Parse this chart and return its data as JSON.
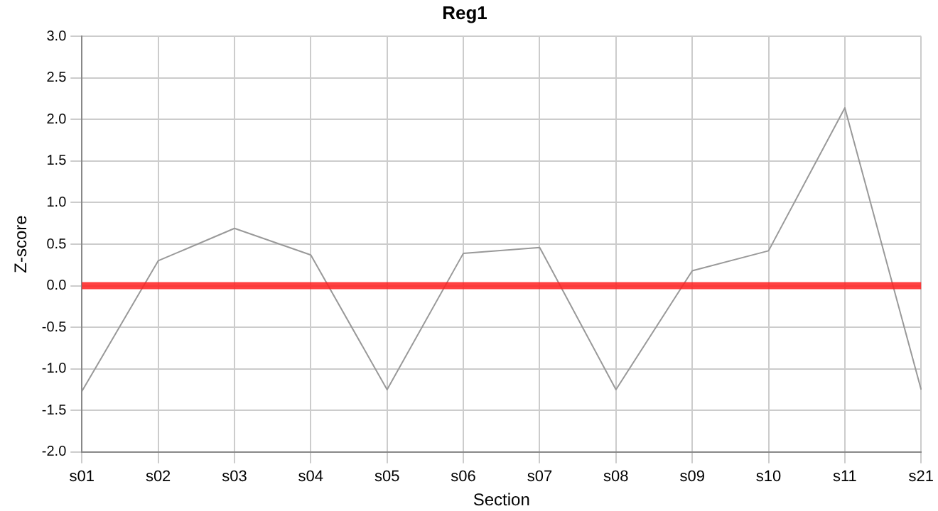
{
  "chart_data": {
    "type": "line",
    "title": "Reg1",
    "xlabel": "Section",
    "ylabel": "Z-score",
    "categories": [
      "s01",
      "s02",
      "s03",
      "s04",
      "s05",
      "s06",
      "s07",
      "s08",
      "s09",
      "s10",
      "s11",
      "s21"
    ],
    "series": [
      {
        "color": "#999999",
        "values": [
          -1.27,
          0.3,
          0.69,
          0.37,
          -1.25,
          0.39,
          0.46,
          -1.25,
          0.18,
          0.42,
          2.14,
          -1.25
        ]
      }
    ],
    "ylim": [
      -2,
      3
    ],
    "yticks": [
      {
        "value": -2,
        "label": "-2.0"
      },
      {
        "value": -1.5,
        "label": "-1.5"
      },
      {
        "value": -1,
        "label": "-1.0"
      },
      {
        "value": -0.5,
        "label": "-0.5"
      },
      {
        "value": 0,
        "label": "0.0"
      },
      {
        "value": 0.5,
        "label": "0.5"
      },
      {
        "value": 1,
        "label": "1.0"
      },
      {
        "value": 1.5,
        "label": "1.5"
      },
      {
        "value": 2,
        "label": "2.0"
      },
      {
        "value": 2.5,
        "label": "2.5"
      },
      {
        "value": 3,
        "label": "3.0"
      }
    ],
    "ref_lines": [
      {
        "axis": "y",
        "value": 0,
        "color": "#ff2020"
      }
    ],
    "grid": true,
    "legend": false,
    "marker": "none",
    "line_style": "solid"
  }
}
